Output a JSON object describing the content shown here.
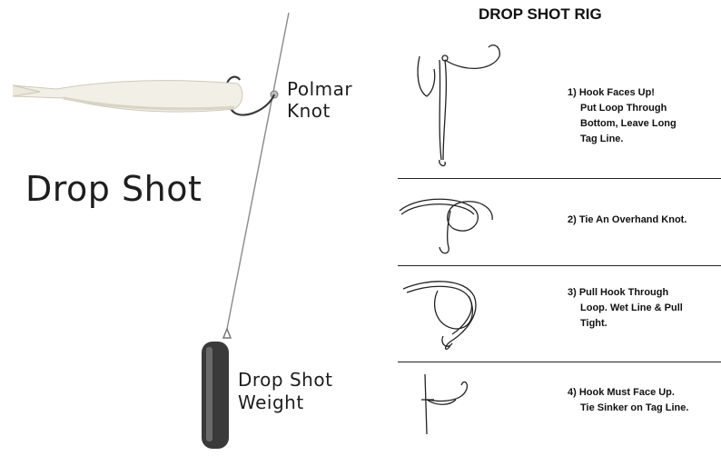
{
  "left_panel": {
    "title": "Drop Shot",
    "knot_label": [
      "Polmar",
      "Knot"
    ],
    "weight_label": [
      "Drop Shot",
      "Weight"
    ]
  },
  "right_panel": {
    "title": "DROP SHOT RIG",
    "steps": [
      {
        "lines": [
          "1) Hook Faces Up!",
          "Put Loop Through",
          "Bottom, Leave Long",
          "Tag Line."
        ]
      },
      {
        "lines": [
          "2) Tie An Overhand Knot."
        ]
      },
      {
        "lines": [
          "3) Pull Hook Through",
          "Loop.  Wet Line & Pull",
          "Tight."
        ]
      },
      {
        "lines": [
          "4) Hook Must Face Up.",
          "Tie Sinker on Tag Line."
        ]
      }
    ]
  },
  "colors": {
    "lure": "#f2efe6",
    "lure_shadow": "#d9d4c4",
    "weight": "#3a3a3a",
    "line": "#8a8a8a"
  }
}
